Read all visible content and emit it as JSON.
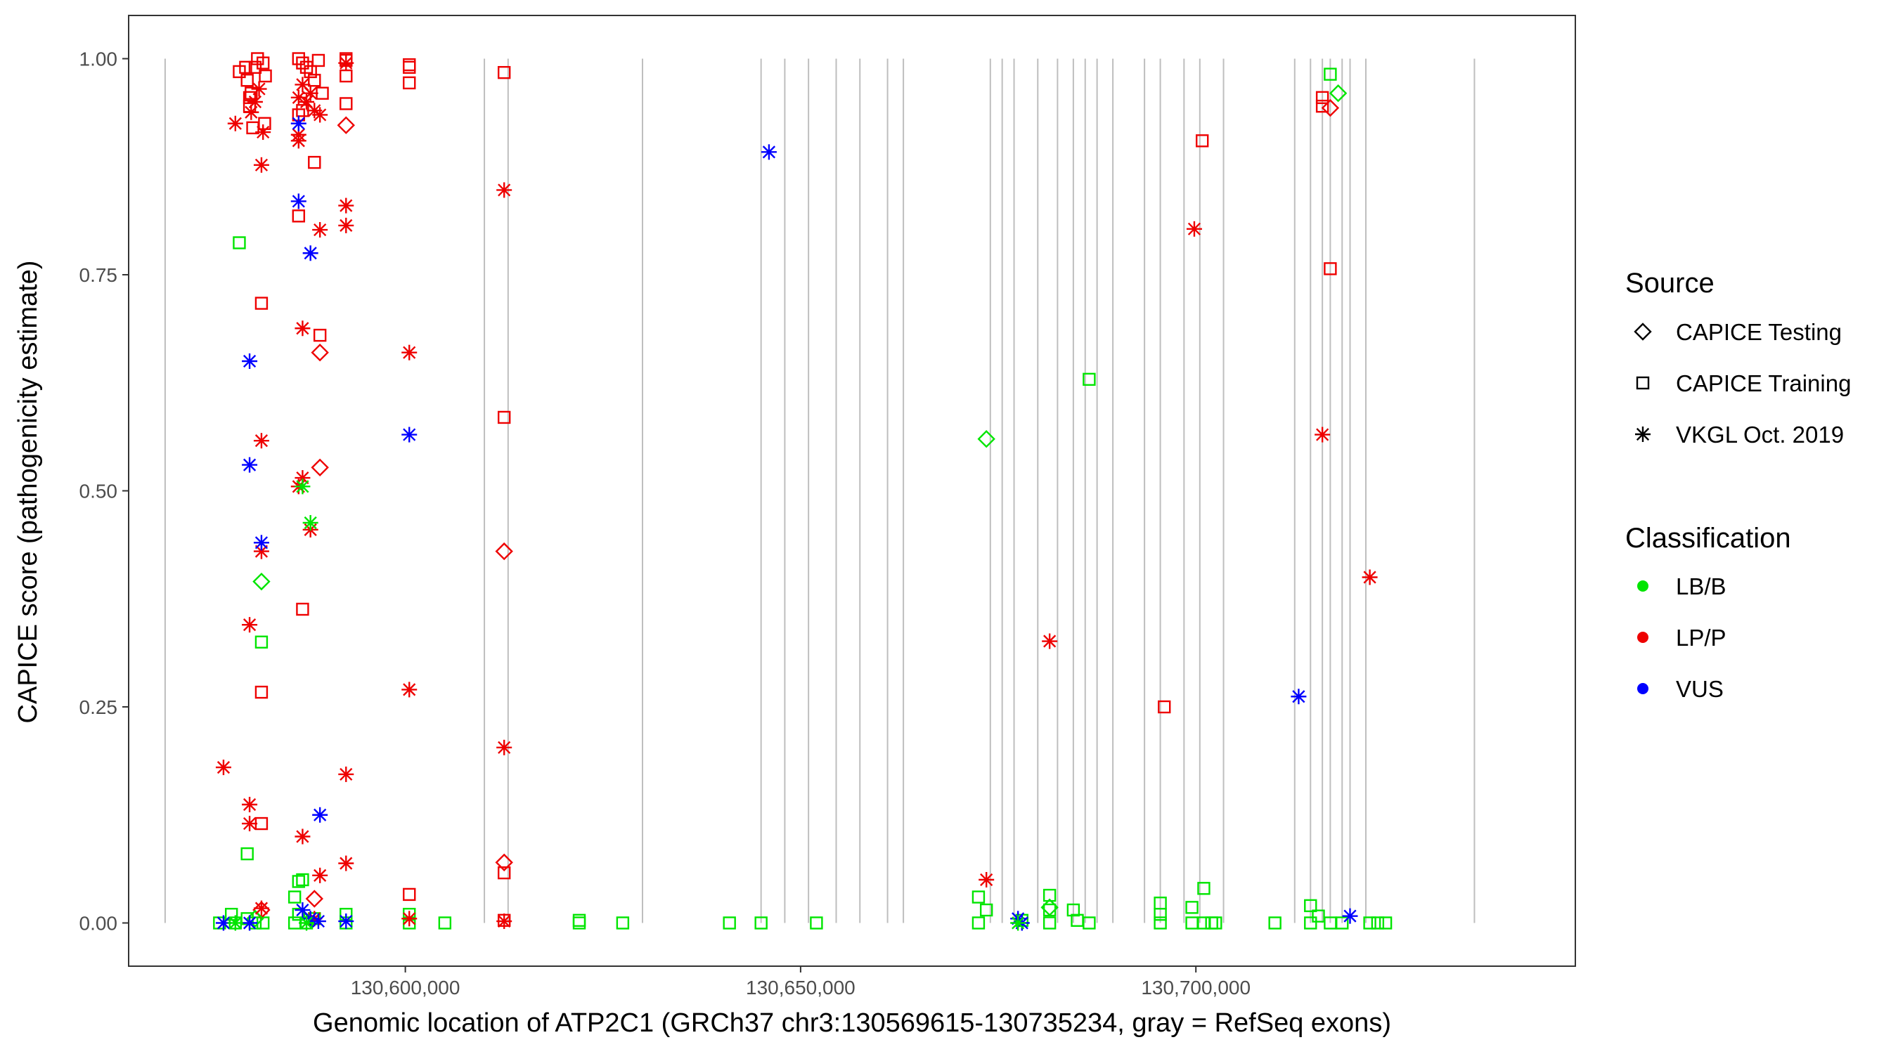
{
  "chart_data": {
    "type": "scatter",
    "xlabel": "Genomic location of ATP2C1 (GRCh37 chr3:130569615-130735234, gray = RefSeq exons)",
    "ylabel": "CAPICE score (pathogenicity estimate)",
    "xlim": [
      130565000,
      130748000
    ],
    "ylim": [
      -0.05,
      1.05
    ],
    "x_ticks": [
      130600000,
      130650000,
      130700000
    ],
    "x_tick_labels": [
      "130,600,000",
      "130,650,000",
      "130,700,000"
    ],
    "y_ticks": [
      0,
      0.25,
      0.5,
      0.75,
      1
    ],
    "y_tick_labels": [
      "0.00",
      "0.25",
      "0.50",
      "0.75",
      "1.00"
    ],
    "grid": false,
    "legend_position": "right",
    "exon_color": "#bebebe",
    "exons": [
      130569615,
      130610000,
      130613000,
      130630000,
      130645000,
      130648000,
      130651000,
      130654500,
      130657500,
      130661000,
      130663000,
      130674000,
      130675500,
      130677000,
      130680000,
      130682500,
      130684500,
      130686000,
      130687500,
      130689500,
      130693500,
      130695500,
      130698500,
      130700500,
      130703500,
      130712500,
      130714500,
      130716000,
      130717000,
      130718500,
      130719500,
      130721500,
      130735234
    ],
    "legend_source": {
      "title": "Source",
      "items": [
        {
          "label": "CAPICE Testing",
          "shape": "diamond"
        },
        {
          "label": "CAPICE Training",
          "shape": "square"
        },
        {
          "label": "VKGL Oct. 2019",
          "shape": "asterisk"
        }
      ]
    },
    "legend_class": {
      "title": "Classification",
      "items": [
        {
          "label": "LB/B",
          "color": "#00e500"
        },
        {
          "label": "LP/P",
          "color": "#ee0000"
        },
        {
          "label": "VUS",
          "color": "#0000ff"
        }
      ]
    },
    "series": [
      {
        "source": "CAPICE Training",
        "classification": "LP/P",
        "shape": "square",
        "color": "#ee0000",
        "points": [
          [
            130579000,
            0.985
          ],
          [
            130579800,
            0.99
          ],
          [
            130580000,
            0.975
          ],
          [
            130580500,
            0.96
          ],
          [
            130581000,
            0.99
          ],
          [
            130581300,
            1.0
          ],
          [
            130582000,
            0.995
          ],
          [
            130582300,
            0.98
          ],
          [
            130580300,
            0.945
          ],
          [
            130580700,
            0.92
          ],
          [
            130582200,
            0.925
          ],
          [
            130580300,
            0.955
          ],
          [
            130581800,
            0.717
          ],
          [
            130581800,
            0.267
          ],
          [
            130581800,
            0.115
          ],
          [
            130586500,
            1.0
          ],
          [
            130587000,
            0.995
          ],
          [
            130587500,
            0.99
          ],
          [
            130588000,
            0.985
          ],
          [
            130588500,
            0.975
          ],
          [
            130589000,
            0.998
          ],
          [
            130589500,
            0.96
          ],
          [
            130587000,
            0.94
          ],
          [
            130586500,
            0.935
          ],
          [
            130588500,
            0.88
          ],
          [
            130586500,
            0.818
          ],
          [
            130589200,
            0.68
          ],
          [
            130587000,
            0.363
          ],
          [
            130592500,
            1.0
          ],
          [
            130592500,
            0.98
          ],
          [
            130592500,
            0.998
          ],
          [
            130592500,
            0.948
          ],
          [
            130600500,
            0.993
          ],
          [
            130600500,
            0.99
          ],
          [
            130600500,
            0.972
          ],
          [
            130600500,
            0.033
          ],
          [
            130612500,
            0.984
          ],
          [
            130612500,
            0.585
          ],
          [
            130612500,
            0.058
          ],
          [
            130612500,
            0.003
          ],
          [
            130700800,
            0.905
          ],
          [
            130696000,
            0.25
          ],
          [
            130716000,
            0.955
          ],
          [
            130716000,
            0.945
          ],
          [
            130717000,
            0.757
          ]
        ]
      },
      {
        "source": "CAPICE Training",
        "classification": "LB/B",
        "shape": "square",
        "color": "#00e500",
        "points": [
          [
            130579000,
            0.787
          ],
          [
            130580000,
            0.08
          ],
          [
            130581800,
            0.325
          ],
          [
            130578000,
            0.01
          ],
          [
            130576500,
            0.0
          ],
          [
            130578500,
            0.0
          ],
          [
            130580000,
            0.005
          ],
          [
            130581000,
            0.0
          ],
          [
            130582000,
            0.0
          ],
          [
            130586500,
            0.048
          ],
          [
            130587000,
            0.05
          ],
          [
            130586000,
            0.03
          ],
          [
            130586500,
            0.01
          ],
          [
            130586000,
            0.0
          ],
          [
            130587500,
            0.0
          ],
          [
            130588500,
            0.005
          ],
          [
            130592500,
            0.01
          ],
          [
            130592500,
            0.0
          ],
          [
            130600500,
            0.01
          ],
          [
            130600500,
            0.0
          ],
          [
            130605000,
            0.0
          ],
          [
            130622000,
            0.003
          ],
          [
            130622000,
            0.0
          ],
          [
            130627500,
            0.0
          ],
          [
            130641000,
            0.0
          ],
          [
            130645000,
            0.0
          ],
          [
            130652000,
            0.0
          ],
          [
            130672500,
            0.03
          ],
          [
            130673500,
            0.015
          ],
          [
            130672500,
            0.0
          ],
          [
            130678000,
            0.003
          ],
          [
            130681500,
            0.032
          ],
          [
            130681500,
            0.015
          ],
          [
            130681500,
            0.0
          ],
          [
            130684500,
            0.015
          ],
          [
            130685000,
            0.003
          ],
          [
            130686500,
            0.0
          ],
          [
            130686500,
            0.629
          ],
          [
            130695500,
            0.023
          ],
          [
            130695500,
            0.01
          ],
          [
            130695500,
            0.0
          ],
          [
            130699500,
            0.018
          ],
          [
            130699500,
            0.0
          ],
          [
            130701000,
            0.04
          ],
          [
            130701000,
            0.0
          ],
          [
            130702000,
            0.0
          ],
          [
            130702500,
            0.0
          ],
          [
            130710000,
            0.0
          ],
          [
            130714500,
            0.02
          ],
          [
            130714500,
            0.0
          ],
          [
            130715500,
            0.008
          ],
          [
            130717000,
            0.982
          ],
          [
            130717000,
            0.0
          ],
          [
            130718500,
            0.0
          ],
          [
            130722000,
            0.0
          ],
          [
            130723000,
            0.0
          ],
          [
            130724000,
            0.0
          ]
        ]
      },
      {
        "source": "CAPICE Testing",
        "classification": "LP/P",
        "shape": "diamond",
        "color": "#ee0000",
        "points": [
          [
            130592500,
            0.923
          ],
          [
            130589200,
            0.66
          ],
          [
            130589200,
            0.527
          ],
          [
            130588500,
            0.028
          ],
          [
            130581800,
            0.015
          ],
          [
            130612500,
            0.43
          ],
          [
            130612500,
            0.07
          ],
          [
            130717000,
            0.943
          ]
        ]
      },
      {
        "source": "CAPICE Testing",
        "classification": "LB/B",
        "shape": "diamond",
        "color": "#00e500",
        "points": [
          [
            130581800,
            0.395
          ],
          [
            130581000,
            0.005
          ],
          [
            130673500,
            0.56
          ],
          [
            130681500,
            0.018
          ],
          [
            130718000,
            0.96
          ]
        ]
      },
      {
        "source": "VKGL Oct. 2019",
        "classification": "LP/P",
        "shape": "asterisk",
        "color": "#ee0000",
        "points": [
          [
            130578500,
            0.925
          ],
          [
            130580500,
            0.938
          ],
          [
            130581000,
            0.95
          ],
          [
            130581500,
            0.965
          ],
          [
            130582000,
            0.915
          ],
          [
            130581800,
            0.877
          ],
          [
            130581800,
            0.558
          ],
          [
            130581800,
            0.43
          ],
          [
            130580300,
            0.345
          ],
          [
            130577000,
            0.18
          ],
          [
            130580300,
            0.137
          ],
          [
            130580300,
            0.115
          ],
          [
            130581800,
            0.017
          ],
          [
            130587000,
            0.97
          ],
          [
            130586500,
            0.955
          ],
          [
            130587500,
            0.95
          ],
          [
            130588000,
            0.96
          ],
          [
            130588500,
            0.94
          ],
          [
            130586500,
            0.905
          ],
          [
            130586500,
            0.912
          ],
          [
            130589200,
            0.935
          ],
          [
            130589200,
            0.802
          ],
          [
            130587000,
            0.688
          ],
          [
            130586500,
            0.505
          ],
          [
            130587000,
            0.515
          ],
          [
            130588000,
            0.455
          ],
          [
            130587000,
            0.1
          ],
          [
            130589200,
            0.055
          ],
          [
            130588500,
            0.005
          ],
          [
            130592500,
            0.83
          ],
          [
            130592500,
            0.807
          ],
          [
            130592500,
            0.172
          ],
          [
            130592500,
            0.069
          ],
          [
            130592500,
            0.995
          ],
          [
            130600500,
            0.66
          ],
          [
            130600500,
            0.27
          ],
          [
            130600500,
            0.005
          ],
          [
            130612500,
            0.848
          ],
          [
            130612500,
            0.203
          ],
          [
            130612500,
            0.002
          ],
          [
            130673500,
            0.05
          ],
          [
            130681500,
            0.326
          ],
          [
            130699800,
            0.803
          ],
          [
            130716000,
            0.565
          ],
          [
            130722000,
            0.4
          ]
        ]
      },
      {
        "source": "VKGL Oct. 2019",
        "classification": "VUS",
        "shape": "asterisk",
        "color": "#0000ff",
        "points": [
          [
            130586500,
            0.925
          ],
          [
            130586500,
            0.835
          ],
          [
            130588000,
            0.775
          ],
          [
            130580300,
            0.65
          ],
          [
            130580300,
            0.53
          ],
          [
            130581800,
            0.44
          ],
          [
            130589200,
            0.125
          ],
          [
            130587000,
            0.015
          ],
          [
            130588000,
            0.005
          ],
          [
            130589000,
            0.002
          ],
          [
            130592500,
            0.002
          ],
          [
            130577000,
            0.0
          ],
          [
            130580300,
            0.0
          ],
          [
            130600500,
            0.565
          ],
          [
            130646000,
            0.892
          ],
          [
            130677500,
            0.005
          ],
          [
            130678000,
            0.0
          ],
          [
            130713000,
            0.262
          ],
          [
            130719500,
            0.008
          ]
        ]
      },
      {
        "source": "VKGL Oct. 2019",
        "classification": "LB/B",
        "shape": "asterisk",
        "color": "#00e500",
        "points": [
          [
            130588000,
            0.463
          ],
          [
            130587000,
            0.505
          ],
          [
            130578500,
            0.0
          ],
          [
            130587500,
            0.0
          ],
          [
            130677500,
            0.0
          ]
        ]
      }
    ]
  }
}
